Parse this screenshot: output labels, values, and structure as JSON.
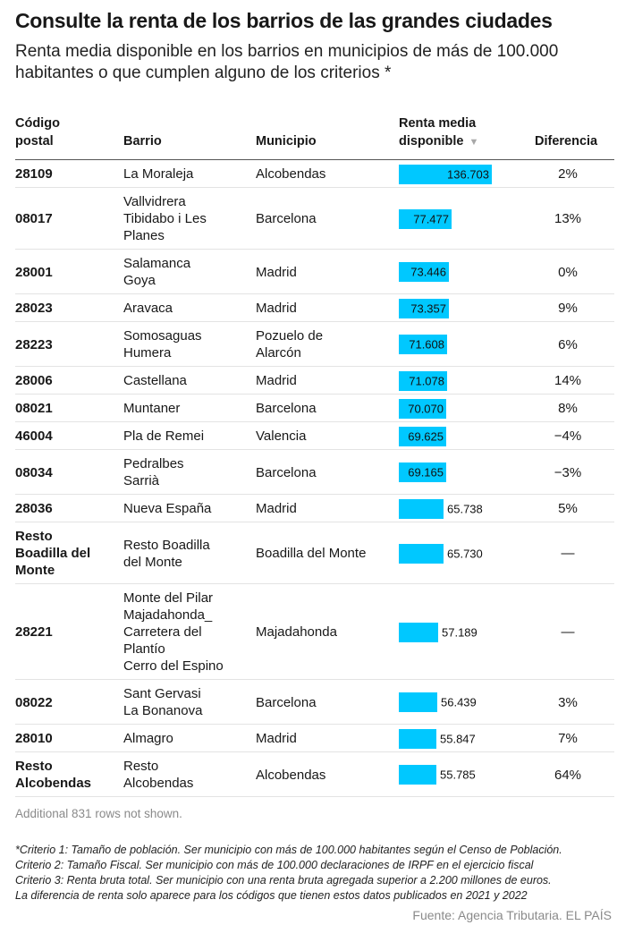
{
  "title": "Consulte la renta de los barrios de las grandes ciudades",
  "subtitle": "Renta media disponible en los barrios en municipios de más de 100.000 habitantes o que cumplen alguno de los criterios *",
  "headers": {
    "codigo": [
      "Código",
      "postal"
    ],
    "barrio": "Barrio",
    "municipio": "Municipio",
    "renta": [
      "Renta media",
      "disponible"
    ],
    "diferencia": "Diferencia",
    "sort_icon": "sort-down-triangle-icon"
  },
  "chart_data": {
    "type": "table",
    "columns": [
      "Código postal",
      "Barrio",
      "Municipio",
      "Renta media disponible",
      "Diferencia"
    ],
    "bar_color": "#00c8ff",
    "bar_max": 136703,
    "rows": [
      {
        "codigo": [
          "28109"
        ],
        "barrio": [
          "La Moraleja"
        ],
        "municipio": [
          "Alcobendas"
        ],
        "renta": 136703,
        "renta_label": "136.703",
        "diferencia": "2%"
      },
      {
        "codigo": [
          "08017"
        ],
        "barrio": [
          "Vallvidrera",
          "Tibidabo i Les",
          "Planes"
        ],
        "municipio": [
          "Barcelona"
        ],
        "renta": 77477,
        "renta_label": "77.477",
        "diferencia": "13%"
      },
      {
        "codigo": [
          "28001"
        ],
        "barrio": [
          "Salamanca",
          "Goya"
        ],
        "municipio": [
          "Madrid"
        ],
        "renta": 73446,
        "renta_label": "73.446",
        "diferencia": "0%"
      },
      {
        "codigo": [
          "28023"
        ],
        "barrio": [
          "Aravaca"
        ],
        "municipio": [
          "Madrid"
        ],
        "renta": 73357,
        "renta_label": "73.357",
        "diferencia": "9%"
      },
      {
        "codigo": [
          "28223"
        ],
        "barrio": [
          "Somosaguas",
          "Humera"
        ],
        "municipio": [
          "Pozuelo de",
          "Alarcón"
        ],
        "renta": 71608,
        "renta_label": "71.608",
        "diferencia": "6%"
      },
      {
        "codigo": [
          "28006"
        ],
        "barrio": [
          "Castellana"
        ],
        "municipio": [
          "Madrid"
        ],
        "renta": 71078,
        "renta_label": "71.078",
        "diferencia": "14%"
      },
      {
        "codigo": [
          "08021"
        ],
        "barrio": [
          "Muntaner"
        ],
        "municipio": [
          "Barcelona"
        ],
        "renta": 70070,
        "renta_label": "70.070",
        "diferencia": "8%"
      },
      {
        "codigo": [
          "46004"
        ],
        "barrio": [
          "Pla de Remei"
        ],
        "municipio": [
          "Valencia"
        ],
        "renta": 69625,
        "renta_label": "69.625",
        "diferencia": "−4%"
      },
      {
        "codigo": [
          "08034"
        ],
        "barrio": [
          "Pedralbes",
          "Sarrià"
        ],
        "municipio": [
          "Barcelona"
        ],
        "renta": 69165,
        "renta_label": "69.165",
        "diferencia": "−3%"
      },
      {
        "codigo": [
          "28036"
        ],
        "barrio": [
          "Nueva España"
        ],
        "municipio": [
          "Madrid"
        ],
        "renta": 65738,
        "renta_label": "65.738",
        "diferencia": "5%"
      },
      {
        "codigo": [
          "Resto",
          "Boadilla del",
          "Monte"
        ],
        "barrio": [
          "Resto Boadilla",
          "del Monte"
        ],
        "municipio": [
          "Boadilla del Monte"
        ],
        "renta": 65730,
        "renta_label": "65.730",
        "diferencia": "—"
      },
      {
        "codigo": [
          "28221"
        ],
        "barrio": [
          "Monte del Pilar",
          "Majadahonda_",
          "Carretera del",
          "Plantío",
          "Cerro del Espino"
        ],
        "municipio": [
          "Majadahonda"
        ],
        "renta": 57189,
        "renta_label": "57.189",
        "diferencia": "—"
      },
      {
        "codigo": [
          "08022"
        ],
        "barrio": [
          "Sant Gervasi",
          "La Bonanova"
        ],
        "municipio": [
          "Barcelona"
        ],
        "renta": 56439,
        "renta_label": "56.439",
        "diferencia": "3%"
      },
      {
        "codigo": [
          "28010"
        ],
        "barrio": [
          "Almagro"
        ],
        "municipio": [
          "Madrid"
        ],
        "renta": 55847,
        "renta_label": "55.847",
        "diferencia": "7%"
      },
      {
        "codigo": [
          "Resto",
          "Alcobendas"
        ],
        "barrio": [
          "Resto",
          "Alcobendas"
        ],
        "municipio": [
          "Alcobendas"
        ],
        "renta": 55785,
        "renta_label": "55.785",
        "diferencia": "64%"
      }
    ]
  },
  "more_rows": "Additional 831 rows not shown.",
  "notes": [
    "*Criterio 1: Tamaño de población. Ser municipio con más de 100.000 habitantes según el Censo de Población.",
    "Criterio 2: Tamaño Fiscal. Ser municipio con más de 100.000 declaraciones de IRPF en el ejercicio fiscal",
    "Criterio 3: Renta bruta total. Ser municipio con una renta bruta agregada superior a 2.200 millones de euros.",
    "La diferencia de renta solo aparece para los códigos que tienen estos datos publicados en 2021 y 2022"
  ],
  "source": "Fuente: Agencia Tributaria. EL PAÍS"
}
